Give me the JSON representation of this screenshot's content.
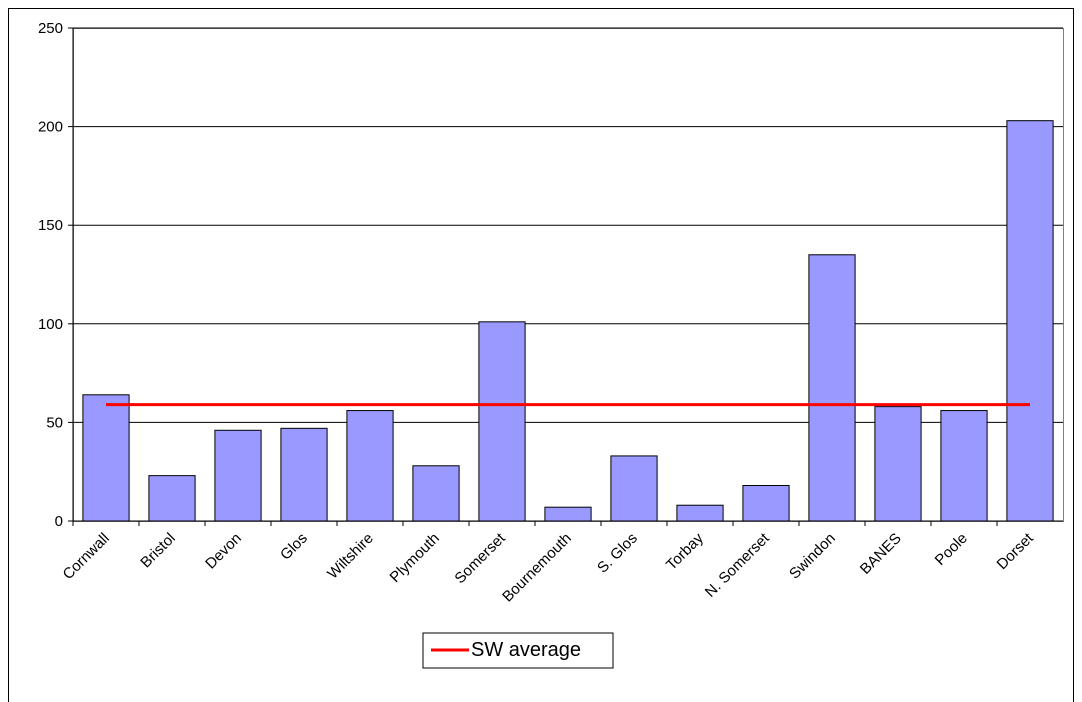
{
  "chart_data": {
    "type": "bar",
    "categories": [
      "Cornwall",
      "Bristol",
      "Devon",
      "Glos",
      "Wiltshire",
      "Plymouth",
      "Somerset",
      "Bournemouth",
      "S. Glos",
      "Torbay",
      "N. Somerset",
      "Swindon",
      "BANES",
      "Poole",
      "Dorset"
    ],
    "series": [
      {
        "type": "bar",
        "color": "#9999ff",
        "values": [
          64,
          23,
          46,
          47,
          56,
          28,
          101,
          7,
          33,
          8,
          18,
          135,
          58,
          56,
          203
        ]
      },
      {
        "type": "line",
        "name": "SW average",
        "color": "#ff0000",
        "values": [
          59,
          59,
          59,
          59,
          59,
          59,
          59,
          59,
          59,
          59,
          59,
          59,
          59,
          59,
          59
        ]
      }
    ],
    "ylim": [
      0,
      250
    ],
    "yticks": [
      0,
      50,
      100,
      150,
      200,
      250
    ],
    "grid": true,
    "legend": "bottom"
  }
}
